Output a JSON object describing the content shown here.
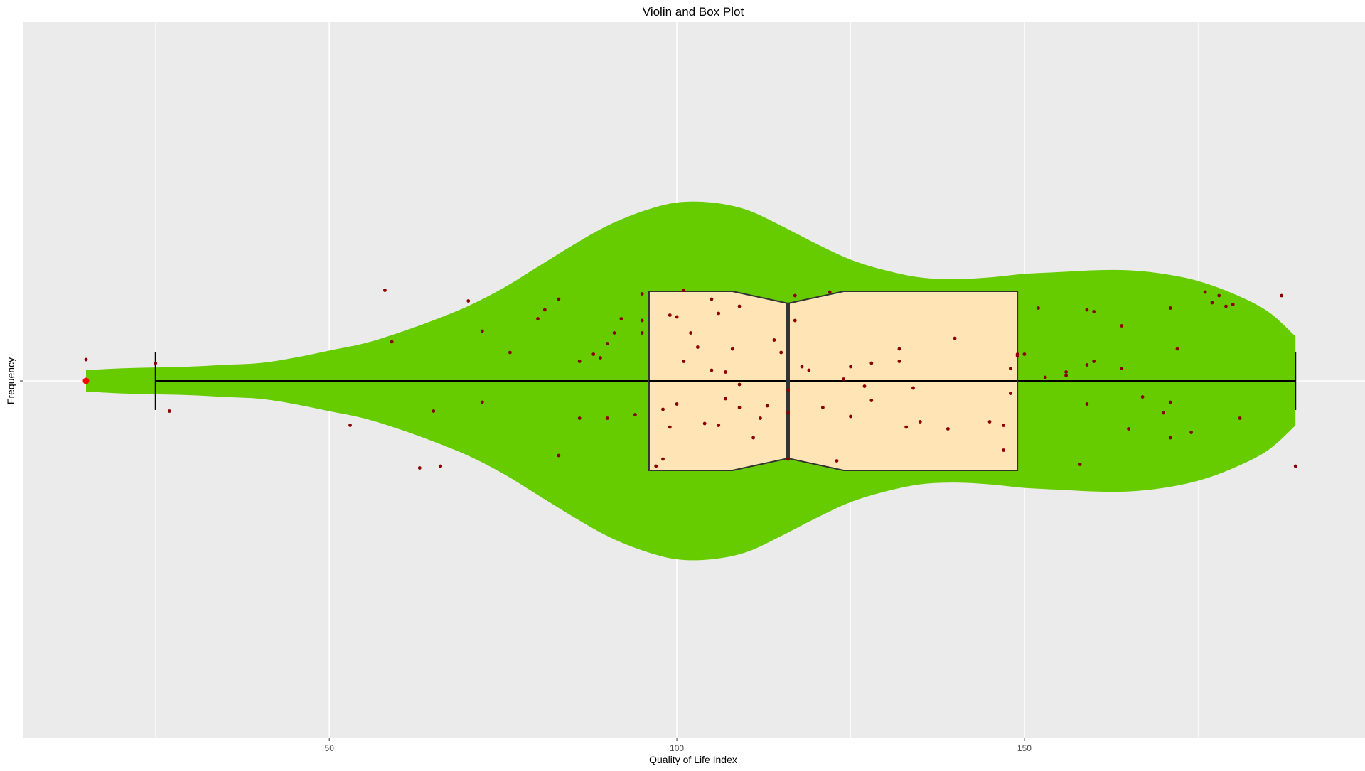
{
  "chart_data": {
    "type": "violin",
    "title": "Violin and Box Plot",
    "xlabel": "Quality of Life Index",
    "ylabel": "Frequency",
    "xlim": [
      6,
      199
    ],
    "x_ticks": [
      50,
      100,
      150
    ],
    "x_tick_labels": [
      "50",
      "100",
      "150"
    ],
    "grid": true,
    "colors": {
      "panel_background": "#EBEBEB",
      "grid": "#FFFFFF",
      "violin_fill": "#66CC00",
      "box_fill": "#FFE4B5",
      "box_line": "#333333",
      "whisker": "#000000",
      "jitter_points": "#8B0000",
      "outlier": "#FF0000"
    },
    "violin": {
      "x": [
        15,
        20,
        25,
        30,
        35,
        40,
        45,
        50,
        55,
        60,
        65,
        70,
        75,
        80,
        85,
        90,
        95,
        100,
        105,
        110,
        115,
        120,
        125,
        130,
        135,
        140,
        145,
        150,
        155,
        160,
        165,
        170,
        175,
        180,
        185,
        189
      ],
      "half_width": [
        0.06,
        0.07,
        0.075,
        0.08,
        0.09,
        0.1,
        0.13,
        0.17,
        0.21,
        0.27,
        0.34,
        0.42,
        0.52,
        0.64,
        0.76,
        0.87,
        0.95,
        1.0,
        1.0,
        0.96,
        0.87,
        0.77,
        0.68,
        0.62,
        0.58,
        0.57,
        0.58,
        0.6,
        0.61,
        0.62,
        0.62,
        0.6,
        0.56,
        0.49,
        0.39,
        0.25
      ]
    },
    "box": {
      "whisker_low": 25,
      "q1": 96,
      "median": 116,
      "q3": 149,
      "whisker_high": 189,
      "notch_low": 108,
      "notch_high": 124
    },
    "outliers": [
      15
    ],
    "jitter_points": [
      {
        "x": 15,
        "y": 0.12
      },
      {
        "x": 25,
        "y": 0.1
      },
      {
        "x": 27,
        "y": -0.17
      },
      {
        "x": 53,
        "y": -0.25
      },
      {
        "x": 58,
        "y": 0.51
      },
      {
        "x": 59,
        "y": 0.22
      },
      {
        "x": 63,
        "y": -0.49
      },
      {
        "x": 65,
        "y": -0.17
      },
      {
        "x": 66,
        "y": -0.48
      },
      {
        "x": 70,
        "y": 0.45
      },
      {
        "x": 72,
        "y": 0.28
      },
      {
        "x": 72,
        "y": -0.12
      },
      {
        "x": 76,
        "y": 0.16
      },
      {
        "x": 80,
        "y": 0.35
      },
      {
        "x": 81,
        "y": 0.4
      },
      {
        "x": 83,
        "y": 0.46
      },
      {
        "x": 83,
        "y": -0.42
      },
      {
        "x": 86,
        "y": 0.11
      },
      {
        "x": 86,
        "y": -0.21
      },
      {
        "x": 88,
        "y": 0.15
      },
      {
        "x": 89,
        "y": 0.13
      },
      {
        "x": 90,
        "y": 0.21
      },
      {
        "x": 91,
        "y": 0.27
      },
      {
        "x": 92,
        "y": 0.35
      },
      {
        "x": 90,
        "y": -0.21
      },
      {
        "x": 94,
        "y": -0.19
      },
      {
        "x": 95,
        "y": 0.49
      },
      {
        "x": 95,
        "y": 0.34
      },
      {
        "x": 95,
        "y": 0.27
      },
      {
        "x": 97,
        "y": -0.48
      },
      {
        "x": 98,
        "y": -0.44
      },
      {
        "x": 98,
        "y": -0.16
      },
      {
        "x": 99,
        "y": 0.37
      },
      {
        "x": 99,
        "y": -0.26
      },
      {
        "x": 100,
        "y": -0.13
      },
      {
        "x": 100,
        "y": 0.36
      },
      {
        "x": 101,
        "y": 0.11
      },
      {
        "x": 101,
        "y": 0.51
      },
      {
        "x": 102,
        "y": 0.27
      },
      {
        "x": 103,
        "y": 0.19
      },
      {
        "x": 104,
        "y": -0.24
      },
      {
        "x": 105,
        "y": 0.46
      },
      {
        "x": 105,
        "y": 0.06
      },
      {
        "x": 106,
        "y": -0.25
      },
      {
        "x": 106,
        "y": 0.38
      },
      {
        "x": 107,
        "y": 0.05
      },
      {
        "x": 107,
        "y": -0.1
      },
      {
        "x": 108,
        "y": 0.18
      },
      {
        "x": 109,
        "y": 0.42
      },
      {
        "x": 109,
        "y": -0.02
      },
      {
        "x": 109,
        "y": -0.15
      },
      {
        "x": 111,
        "y": -0.32
      },
      {
        "x": 112,
        "y": -0.21
      },
      {
        "x": 113,
        "y": -0.14
      },
      {
        "x": 114,
        "y": 0.23
      },
      {
        "x": 115,
        "y": 0.16
      },
      {
        "x": 116,
        "y": -0.44
      },
      {
        "x": 117,
        "y": 0.48
      },
      {
        "x": 117,
        "y": 0.34
      },
      {
        "x": 118,
        "y": 0.08
      },
      {
        "x": 116,
        "y": -0.18
      },
      {
        "x": 116,
        "y": -0.05
      },
      {
        "x": 119,
        "y": 0.06
      },
      {
        "x": 121,
        "y": -0.15
      },
      {
        "x": 122,
        "y": 0.5
      },
      {
        "x": 123,
        "y": -0.45
      },
      {
        "x": 124,
        "y": 0.01
      },
      {
        "x": 125,
        "y": 0.08
      },
      {
        "x": 125,
        "y": -0.2
      },
      {
        "x": 127,
        "y": -0.03
      },
      {
        "x": 128,
        "y": 0.1
      },
      {
        "x": 128,
        "y": -0.11
      },
      {
        "x": 132,
        "y": 0.18
      },
      {
        "x": 132,
        "y": 0.11
      },
      {
        "x": 133,
        "y": -0.26
      },
      {
        "x": 134,
        "y": -0.04
      },
      {
        "x": 135,
        "y": -0.23
      },
      {
        "x": 139,
        "y": -0.27
      },
      {
        "x": 140,
        "y": 0.24
      },
      {
        "x": 145,
        "y": -0.23
      },
      {
        "x": 147,
        "y": -0.25
      },
      {
        "x": 147,
        "y": -0.39
      },
      {
        "x": 148,
        "y": -0.07
      },
      {
        "x": 148,
        "y": 0.07
      },
      {
        "x": 149,
        "y": 0.14
      },
      {
        "x": 149,
        "y": 0.15
      },
      {
        "x": 150,
        "y": 0.15
      },
      {
        "x": 152,
        "y": 0.41
      },
      {
        "x": 153,
        "y": 0.02
      },
      {
        "x": 156,
        "y": 0.05
      },
      {
        "x": 156,
        "y": 0.03
      },
      {
        "x": 158,
        "y": -0.47
      },
      {
        "x": 159,
        "y": 0.09
      },
      {
        "x": 159,
        "y": 0.4
      },
      {
        "x": 159,
        "y": -0.13
      },
      {
        "x": 160,
        "y": 0.11
      },
      {
        "x": 160,
        "y": 0.39
      },
      {
        "x": 164,
        "y": 0.31
      },
      {
        "x": 164,
        "y": 0.07
      },
      {
        "x": 165,
        "y": -0.27
      },
      {
        "x": 167,
        "y": -0.09
      },
      {
        "x": 170,
        "y": -0.18
      },
      {
        "x": 171,
        "y": 0.41
      },
      {
        "x": 171,
        "y": -0.32
      },
      {
        "x": 171,
        "y": -0.12
      },
      {
        "x": 172,
        "y": 0.18
      },
      {
        "x": 174,
        "y": -0.29
      },
      {
        "x": 176,
        "y": 0.5
      },
      {
        "x": 177,
        "y": 0.44
      },
      {
        "x": 178,
        "y": 0.48
      },
      {
        "x": 179,
        "y": 0.42
      },
      {
        "x": 180,
        "y": 0.43
      },
      {
        "x": 181,
        "y": -0.21
      },
      {
        "x": 187,
        "y": 0.48
      },
      {
        "x": 189,
        "y": -0.48
      }
    ]
  }
}
